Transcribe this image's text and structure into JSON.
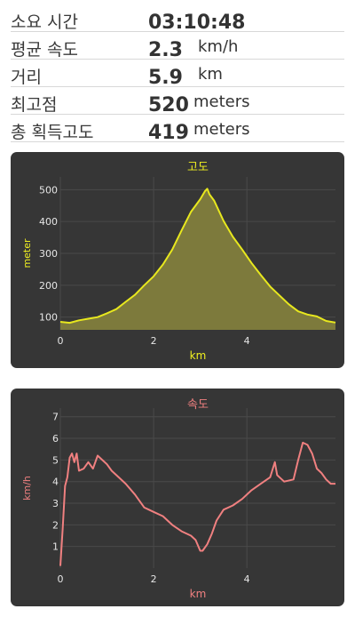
{
  "stats": [
    {
      "label": "소요 시간",
      "value": "03:10:48",
      "unit": ""
    },
    {
      "label": "평균 속도",
      "value": "2.3",
      "unit": "km/h"
    },
    {
      "label": "거리",
      "value": "5.9",
      "unit": "km"
    },
    {
      "label": "최고점",
      "value": "520",
      "unit": "meters"
    },
    {
      "label": "총 획득고도",
      "value": "419",
      "unit": "meters"
    }
  ],
  "chart_data": [
    {
      "type": "area",
      "title": "고도",
      "xlabel": "km",
      "ylabel": "meter",
      "xlim": [
        0,
        5.9
      ],
      "ylim": [
        60,
        540
      ],
      "xticks": [
        "0",
        "2",
        "4"
      ],
      "yticks": [
        "100",
        "200",
        "300",
        "400",
        "500"
      ],
      "colors": {
        "line": "#e8e81e",
        "fill": "#7d7a3c",
        "title": "#f0f020",
        "axis": "#f0f020"
      },
      "x": [
        0,
        0.2,
        0.4,
        0.6,
        0.8,
        1.0,
        1.2,
        1.4,
        1.6,
        1.8,
        2.0,
        2.2,
        2.4,
        2.6,
        2.8,
        3.0,
        3.1,
        3.15,
        3.2,
        3.3,
        3.5,
        3.7,
        3.9,
        4.1,
        4.3,
        4.5,
        4.7,
        4.9,
        5.1,
        5.3,
        5.5,
        5.7,
        5.9
      ],
      "values": [
        85,
        82,
        90,
        95,
        100,
        112,
        125,
        148,
        170,
        200,
        228,
        265,
        312,
        372,
        430,
        470,
        495,
        503,
        485,
        465,
        402,
        352,
        312,
        270,
        232,
        196,
        168,
        140,
        118,
        108,
        102,
        88,
        83
      ]
    },
    {
      "type": "line",
      "title": "속도",
      "xlabel": "km",
      "ylabel": "km/h",
      "xlim": [
        0,
        5.9
      ],
      "ylim": [
        0,
        7.4
      ],
      "xticks": [
        "0",
        "2",
        "4"
      ],
      "yticks": [
        "1",
        "2",
        "3",
        "4",
        "5",
        "6",
        "7"
      ],
      "colors": {
        "line": "#f08080",
        "title": "#f08080",
        "axis": "#f08080"
      },
      "x": [
        0,
        0.05,
        0.1,
        0.15,
        0.2,
        0.25,
        0.3,
        0.35,
        0.4,
        0.5,
        0.6,
        0.7,
        0.8,
        0.9,
        1.0,
        1.1,
        1.2,
        1.4,
        1.6,
        1.8,
        1.9,
        2.0,
        2.2,
        2.4,
        2.6,
        2.8,
        2.9,
        3.0,
        3.05,
        3.15,
        3.25,
        3.35,
        3.5,
        3.7,
        3.9,
        4.1,
        4.3,
        4.5,
        4.6,
        4.65,
        4.7,
        4.8,
        5.0,
        5.1,
        5.2,
        5.3,
        5.4,
        5.5,
        5.6,
        5.7,
        5.8,
        5.9
      ],
      "values": [
        0.1,
        1.8,
        3.8,
        4.2,
        5.1,
        5.3,
        4.9,
        5.3,
        4.5,
        4.6,
        4.9,
        4.6,
        5.2,
        5.0,
        4.8,
        4.5,
        4.3,
        3.9,
        3.4,
        2.8,
        2.7,
        2.6,
        2.4,
        2.0,
        1.7,
        1.5,
        1.3,
        0.8,
        0.8,
        1.1,
        1.6,
        2.2,
        2.7,
        2.9,
        3.2,
        3.6,
        3.9,
        4.2,
        4.9,
        4.3,
        4.2,
        4.0,
        4.1,
        5.0,
        5.8,
        5.7,
        5.3,
        4.6,
        4.4,
        4.1,
        3.9,
        3.9
      ]
    }
  ]
}
